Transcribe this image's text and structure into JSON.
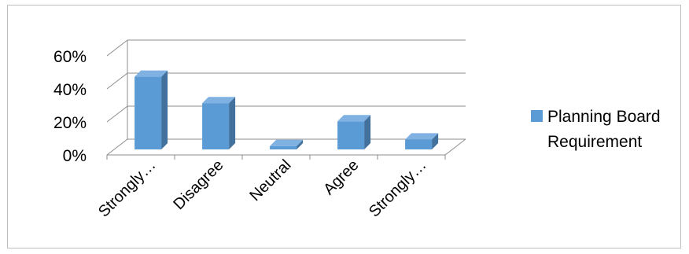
{
  "chart_data": {
    "type": "bar",
    "title": "",
    "xlabel": "",
    "ylabel": "",
    "categories": [
      "Strongly…",
      "Disagree",
      "Neutral",
      "Agree",
      "Strongly…"
    ],
    "series": [
      {
        "name": "Planning Board Requirement",
        "values": [
          0.44,
          0.28,
          0.02,
          0.17,
          0.06
        ]
      }
    ],
    "ylim": [
      0,
      0.6
    ],
    "yticks": [
      "0%",
      "20%",
      "40%",
      "60%"
    ],
    "grid": true,
    "legend": "right",
    "style": "3d-column",
    "colors": {
      "bar_front": "#5b9bd5",
      "bar_side": "#41719c",
      "bar_top": "#7fb1e3",
      "grid": "#8c8c8c"
    }
  }
}
